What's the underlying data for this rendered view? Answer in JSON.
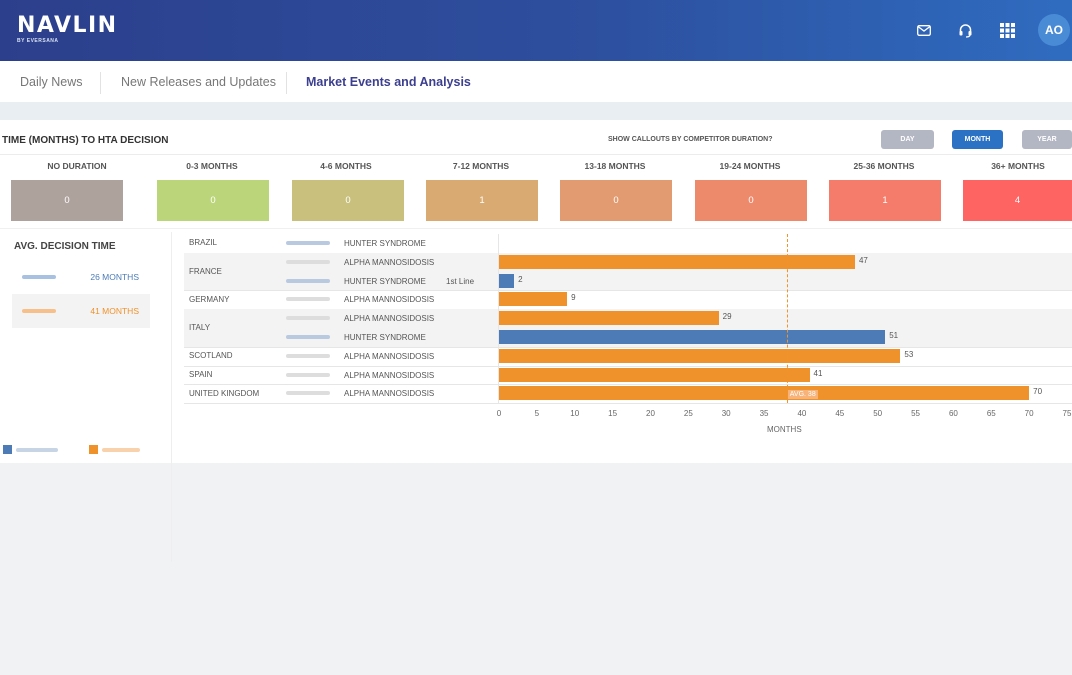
{
  "header": {
    "logo": "NAVLIN",
    "logo_sub": "BY EVERSANA",
    "avatar": "AO",
    "icons": [
      "mail-icon",
      "headset-icon",
      "apps-grid-icon"
    ]
  },
  "nav": {
    "tabs": [
      "Daily News",
      "New Releases and Updates",
      "Market Events and Analysis"
    ],
    "active": "Market Events and Analysis"
  },
  "panel": {
    "title": "TIME (MONTHS) TO HTA DECISION",
    "callout_question": "SHOW CALLOUTS BY COMPETITOR DURATION?",
    "toggle": {
      "day": "DAY",
      "month": "MONTH",
      "year": "YEAR",
      "selected": "MONTH"
    }
  },
  "durations": [
    {
      "label": "NO DURATION",
      "count": "0",
      "color": "#aea29c"
    },
    {
      "label": "0-3 MONTHS",
      "count": "0",
      "color": "#bad57a"
    },
    {
      "label": "4-6 MONTHS",
      "count": "0",
      "color": "#c8c07c"
    },
    {
      "label": "7-12 MONTHS",
      "count": "1",
      "color": "#d9ab72"
    },
    {
      "label": "13-18 MONTHS",
      "count": "0",
      "color": "#e29a70"
    },
    {
      "label": "19-24 MONTHS",
      "count": "0",
      "color": "#ed8a6c"
    },
    {
      "label": "25-36 MONTHS",
      "count": "1",
      "color": "#f57b6a"
    },
    {
      "label": "36+ MONTHS",
      "count": "4",
      "color": "#fd6462"
    }
  ],
  "avg_decision": {
    "title": "AVG. DECISION TIME",
    "rows": [
      {
        "value": "26 MONTHS",
        "color": "#4c7bb6"
      },
      {
        "value": "41 MONTHS",
        "color": "#f0922b"
      }
    ]
  },
  "colors": {
    "drug_a": "#4c7bb6",
    "drug_b": "#f0922b"
  },
  "chart_data": {
    "type": "bar",
    "orientation": "horizontal",
    "xlabel": "MONTHS",
    "xlim": [
      0,
      75
    ],
    "xticks": [
      "0",
      "5",
      "10",
      "15",
      "20",
      "25",
      "30",
      "35",
      "40",
      "45",
      "50",
      "55",
      "60",
      "65",
      "70",
      "75"
    ],
    "avg_label": "AVG. 38",
    "avg_value": 38,
    "rows": [
      {
        "country": "BRAZIL",
        "indication": "HUNTER SYNDROME",
        "note": "",
        "value": null,
        "drug": "a"
      },
      {
        "country": "FRANCE",
        "indication": "ALPHA MANNOSIDOSIS",
        "note": "",
        "value": 47,
        "drug": "b"
      },
      {
        "country": "",
        "indication": "HUNTER SYNDROME",
        "note": "1st Line",
        "value": 2,
        "drug": "a"
      },
      {
        "country": "GERMANY",
        "indication": "ALPHA MANNOSIDOSIS",
        "note": "",
        "value": 9,
        "drug": "b"
      },
      {
        "country": "ITALY",
        "indication": "ALPHA MANNOSIDOSIS",
        "note": "",
        "value": 29,
        "drug": "b"
      },
      {
        "country": "",
        "indication": "HUNTER SYNDROME",
        "note": "",
        "value": 51,
        "drug": "a"
      },
      {
        "country": "SCOTLAND",
        "indication": "ALPHA MANNOSIDOSIS",
        "note": "",
        "value": 53,
        "drug": "b"
      },
      {
        "country": "SPAIN",
        "indication": "ALPHA MANNOSIDOSIS",
        "note": "",
        "value": 41,
        "drug": "b"
      },
      {
        "country": "UNITED KINGDOM",
        "indication": "ALPHA MANNOSIDOSIS",
        "note": "",
        "value": 70,
        "drug": "b"
      }
    ]
  }
}
